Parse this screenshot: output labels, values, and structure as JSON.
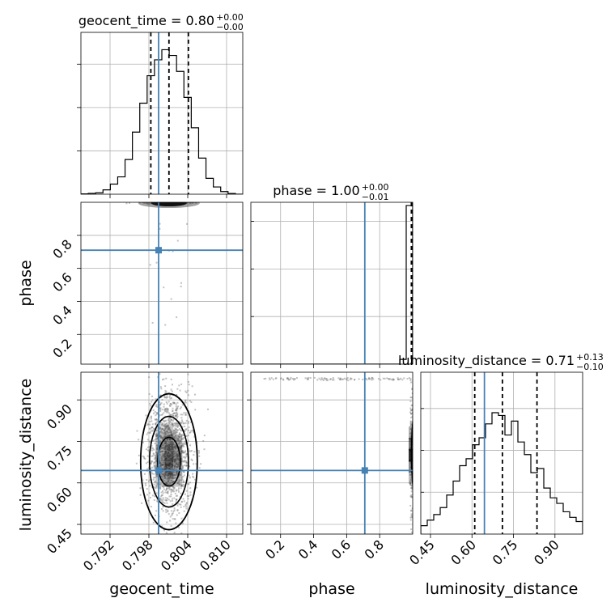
{
  "chart_data": {
    "type": "corner",
    "truth_color": "#4682b4",
    "contour_color": "#000000",
    "grid": true,
    "parameters": [
      {
        "name": "geocent_time",
        "range": [
          0.7875,
          0.8125
        ],
        "ticks": [
          0.792,
          0.798,
          0.804,
          0.81
        ],
        "tick_labels": [
          "0.792",
          "0.798",
          "0.804",
          "0.810"
        ],
        "xlabel": "geocent_time",
        "ylabel": "",
        "title_name": "geocent_time",
        "median": "0.80",
        "plus": "+0.00",
        "minus": "−0.00",
        "truth": 0.7995,
        "quantiles": [
          0.7983,
          0.8011,
          0.8041
        ],
        "hist": [
          0.002,
          0.006,
          0.01,
          0.03,
          0.07,
          0.12,
          0.24,
          0.43,
          0.63,
          0.82,
          0.93,
          1.0,
          0.96,
          0.85,
          0.67,
          0.46,
          0.25,
          0.11,
          0.05,
          0.018,
          0.005,
          0.0
        ]
      },
      {
        "name": "phase",
        "range": [
          0.02,
          1.0
        ],
        "ticks": [
          0.2,
          0.4,
          0.6,
          0.8
        ],
        "tick_labels": [
          "0.2",
          "0.4",
          "0.6",
          "0.8"
        ],
        "xlabel": "phase",
        "ylabel": "phase",
        "title_name": "phase",
        "median": "1.00",
        "plus": "+0.00",
        "minus": "−0.01",
        "truth": 0.71,
        "quantiles": [
          0.992,
          0.998,
          1.0
        ],
        "hist": [
          0,
          0,
          0,
          0,
          0,
          0,
          0,
          0,
          0,
          0,
          0,
          0,
          0,
          0,
          0,
          0,
          0,
          0,
          0,
          0,
          0,
          0,
          0,
          0.03,
          1.0
        ]
      },
      {
        "name": "luminosity_distance",
        "range": [
          0.415,
          1.0
        ],
        "ticks": [
          0.45,
          0.6,
          0.75,
          0.9
        ],
        "tick_labels": [
          "0.45",
          "0.60",
          "0.75",
          "0.90"
        ],
        "xlabel": "luminosity_distance",
        "ylabel": "luminosity_distance",
        "title_name": "luminosity_distance",
        "median": "0.71",
        "plus": "+0.13",
        "minus": "−0.10",
        "truth": 0.645,
        "quantiles": [
          0.61,
          0.71,
          0.835
        ],
        "hist": [
          0.06,
          0.1,
          0.14,
          0.19,
          0.28,
          0.38,
          0.49,
          0.54,
          0.64,
          0.69,
          0.79,
          0.87,
          0.85,
          0.71,
          0.81,
          0.66,
          0.57,
          0.44,
          0.47,
          0.33,
          0.26,
          0.22,
          0.16,
          0.12,
          0.09
        ]
      }
    ]
  }
}
